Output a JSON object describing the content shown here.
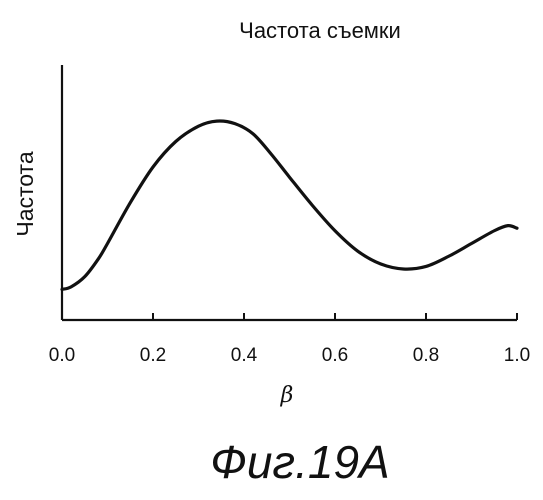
{
  "chart_data": {
    "type": "line",
    "title": "Частота съемки",
    "ylabel": "Частота",
    "xlabel": "β",
    "xlim": [
      0.0,
      1.0
    ],
    "ylim": [
      0.0,
      1.0
    ],
    "x_ticks": [
      "0.0",
      "0.2",
      "0.4",
      "0.6",
      "0.8",
      "1.0"
    ],
    "y_ticks": [],
    "grid": false,
    "legend": "none",
    "series": [
      {
        "x": [
          0.0,
          0.02,
          0.05,
          0.08,
          0.1,
          0.15,
          0.2,
          0.25,
          0.3,
          0.34,
          0.38,
          0.42,
          0.46,
          0.5,
          0.55,
          0.6,
          0.65,
          0.7,
          0.75,
          0.8,
          0.85,
          0.9,
          0.95,
          0.98,
          1.0
        ],
        "y": [
          0.12,
          0.13,
          0.17,
          0.24,
          0.3,
          0.46,
          0.6,
          0.7,
          0.76,
          0.78,
          0.77,
          0.73,
          0.65,
          0.56,
          0.45,
          0.35,
          0.27,
          0.22,
          0.2,
          0.21,
          0.25,
          0.3,
          0.35,
          0.37,
          0.36
        ]
      }
    ],
    "line_color": "#111111"
  },
  "caption": "Фиг.19А"
}
